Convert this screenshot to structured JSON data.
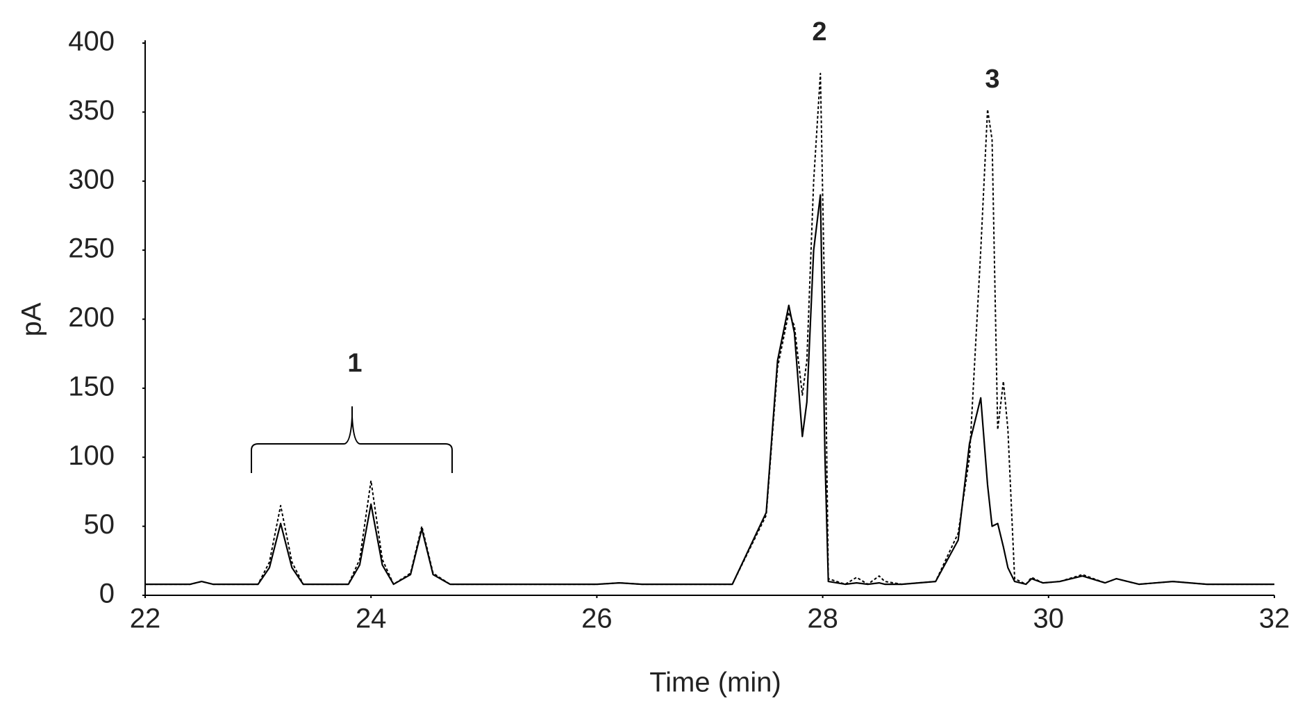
{
  "chart_data": {
    "type": "line",
    "x_label": "Time (min)",
    "y_label": "pA",
    "annotations": [
      "1",
      "2",
      "3"
    ],
    "xlim": [
      22,
      32
    ],
    "xticks": [
      22,
      24,
      26,
      28,
      30,
      32
    ],
    "ylim": [
      0,
      400
    ],
    "yticks": [
      0,
      50,
      100,
      150,
      200,
      250,
      300,
      350,
      400
    ],
    "grid": false,
    "x": [
      22,
      22.4,
      22.5,
      22.6,
      23.0,
      23.1,
      23.2,
      23.3,
      23.4,
      23.8,
      23.9,
      24.0,
      24.1,
      24.2,
      24.35,
      24.45,
      24.55,
      24.7,
      26.0,
      26.2,
      26.4,
      27.2,
      27.5,
      27.6,
      27.7,
      27.75,
      27.82,
      27.86,
      27.92,
      27.98,
      28.02,
      28.05,
      28.2,
      28.3,
      28.4,
      28.5,
      28.55,
      28.7,
      29.0,
      29.2,
      29.3,
      29.4,
      29.46,
      29.5,
      29.55,
      29.6,
      29.64,
      29.7,
      29.8,
      29.85,
      29.95,
      30.1,
      30.3,
      30.5,
      30.6,
      30.8,
      31.1,
      31.4,
      32
    ],
    "series": [
      {
        "color": "#000000",
        "style": "solid",
        "values": [
          8,
          8,
          10,
          8,
          8,
          20,
          52,
          20,
          8,
          8,
          22,
          66,
          22,
          8,
          15,
          48,
          15,
          8,
          8,
          9,
          8,
          8,
          60,
          170,
          210,
          190,
          115,
          140,
          250,
          290,
          100,
          10,
          8,
          9,
          8,
          9,
          8,
          8,
          10,
          40,
          110,
          143,
          80,
          50,
          52,
          35,
          20,
          10,
          8,
          12,
          9,
          10,
          14,
          9,
          12,
          8,
          10,
          8,
          8
        ]
      },
      {
        "color": "#000000",
        "style": "dashed",
        "values": [
          8,
          8,
          10,
          8,
          8,
          24,
          65,
          24,
          8,
          8,
          26,
          83,
          26,
          8,
          16,
          50,
          16,
          8,
          8,
          9,
          8,
          8,
          58,
          165,
          205,
          195,
          145,
          170,
          300,
          378,
          200,
          12,
          8,
          13,
          8,
          14,
          10,
          8,
          10,
          45,
          100,
          250,
          352,
          330,
          120,
          155,
          120,
          12,
          8,
          13,
          9,
          10,
          15,
          9,
          12,
          8,
          10,
          8,
          8
        ]
      }
    ]
  }
}
